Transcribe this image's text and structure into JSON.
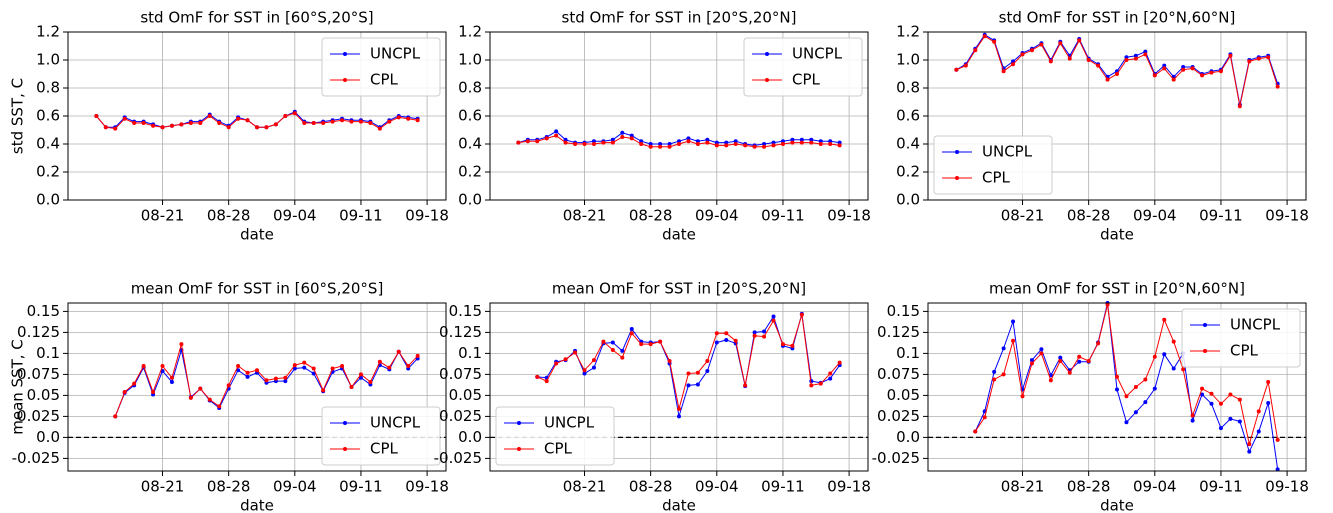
{
  "chart_data": [
    {
      "type": "line",
      "title": "std OmF for SST in [60°S,20°S]",
      "xlabel": "date",
      "ylabel": "std SST, C",
      "x": [
        "08-14",
        "08-15",
        "08-16",
        "08-17",
        "08-18",
        "08-19",
        "08-20",
        "08-21",
        "08-22",
        "08-23",
        "08-24",
        "08-25",
        "08-26",
        "08-27",
        "08-28",
        "08-29",
        "08-30",
        "08-31",
        "09-01",
        "09-02",
        "09-03",
        "09-04",
        "09-05",
        "09-06",
        "09-07",
        "09-08",
        "09-09",
        "09-10",
        "09-11",
        "09-12",
        "09-13",
        "09-14",
        "09-15",
        "09-16",
        "09-17"
      ],
      "series": [
        {
          "name": "UNCPL",
          "color": "#0000ff",
          "values": [
            0.6,
            0.52,
            0.52,
            0.59,
            0.56,
            0.56,
            0.54,
            0.52,
            0.53,
            0.54,
            0.56,
            0.56,
            0.61,
            0.56,
            0.53,
            0.59,
            0.57,
            0.52,
            0.52,
            0.54,
            0.6,
            0.63,
            0.56,
            0.55,
            0.56,
            0.57,
            0.58,
            0.57,
            0.57,
            0.56,
            0.52,
            0.57,
            0.6,
            0.59,
            0.58
          ]
        },
        {
          "name": "CPL",
          "color": "#ff0000",
          "values": [
            0.6,
            0.52,
            0.51,
            0.58,
            0.55,
            0.55,
            0.53,
            0.52,
            0.53,
            0.54,
            0.55,
            0.55,
            0.6,
            0.55,
            0.52,
            0.58,
            0.57,
            0.52,
            0.52,
            0.54,
            0.6,
            0.62,
            0.55,
            0.55,
            0.55,
            0.56,
            0.57,
            0.56,
            0.56,
            0.55,
            0.51,
            0.56,
            0.59,
            0.58,
            0.57
          ]
        }
      ],
      "xlim": [
        "08-11",
        "09-20"
      ],
      "xticks": [
        "08-21",
        "08-28",
        "09-04",
        "09-11",
        "09-18"
      ],
      "ylim": [
        0,
        1.2
      ],
      "yticks": [
        {
          "value": 0,
          "label": "0.0"
        },
        0.2,
        0.4,
        0.6,
        0.8,
        {
          "value": 1,
          "label": "1.0"
        },
        1.2
      ],
      "grid": true,
      "legend": "upper right"
    },
    {
      "type": "line",
      "title": "std OmF for SST in [20°S,20°N]",
      "xlabel": "date",
      "x": [
        "08-14",
        "08-15",
        "08-16",
        "08-17",
        "08-18",
        "08-19",
        "08-20",
        "08-21",
        "08-22",
        "08-23",
        "08-24",
        "08-25",
        "08-26",
        "08-27",
        "08-28",
        "08-29",
        "08-30",
        "08-31",
        "09-01",
        "09-02",
        "09-03",
        "09-04",
        "09-05",
        "09-06",
        "09-07",
        "09-08",
        "09-09",
        "09-10",
        "09-11",
        "09-12",
        "09-13",
        "09-14",
        "09-15",
        "09-16",
        "09-17"
      ],
      "series": [
        {
          "name": "UNCPL",
          "color": "#0000ff",
          "values": [
            0.41,
            0.43,
            0.43,
            0.45,
            0.49,
            0.43,
            0.41,
            0.41,
            0.42,
            0.42,
            0.43,
            0.48,
            0.46,
            0.42,
            0.4,
            0.4,
            0.4,
            0.42,
            0.44,
            0.42,
            0.43,
            0.41,
            0.41,
            0.42,
            0.4,
            0.39,
            0.4,
            0.41,
            0.42,
            0.43,
            0.43,
            0.43,
            0.42,
            0.42,
            0.41
          ]
        },
        {
          "name": "CPL",
          "color": "#ff0000",
          "values": [
            0.41,
            0.42,
            0.42,
            0.44,
            0.46,
            0.41,
            0.4,
            0.4,
            0.4,
            0.41,
            0.41,
            0.45,
            0.44,
            0.4,
            0.38,
            0.38,
            0.38,
            0.4,
            0.42,
            0.4,
            0.41,
            0.39,
            0.39,
            0.4,
            0.39,
            0.38,
            0.38,
            0.39,
            0.4,
            0.41,
            0.41,
            0.41,
            0.4,
            0.4,
            0.39
          ]
        }
      ],
      "xlim": [
        "08-11",
        "09-20"
      ],
      "xticks": [
        "08-21",
        "08-28",
        "09-04",
        "09-11",
        "09-18"
      ],
      "ylim": [
        0,
        1.2
      ],
      "yticks": [
        {
          "value": 0,
          "label": "0.0"
        },
        0.2,
        0.4,
        0.6,
        0.8,
        {
          "value": 1,
          "label": "1.0"
        },
        1.2
      ],
      "grid": true,
      "legend": "upper right"
    },
    {
      "type": "line",
      "title": "std OmF for SST in [20°N,60°N]",
      "xlabel": "date",
      "x": [
        "08-14",
        "08-15",
        "08-16",
        "08-17",
        "08-18",
        "08-19",
        "08-20",
        "08-21",
        "08-22",
        "08-23",
        "08-24",
        "08-25",
        "08-26",
        "08-27",
        "08-28",
        "08-29",
        "08-30",
        "08-31",
        "09-01",
        "09-02",
        "09-03",
        "09-04",
        "09-05",
        "09-06",
        "09-07",
        "09-08",
        "09-09",
        "09-10",
        "09-11",
        "09-12",
        "09-13",
        "09-14",
        "09-15",
        "09-16",
        "09-17"
      ],
      "series": [
        {
          "name": "UNCPL",
          "color": "#0000ff",
          "values": [
            0.93,
            0.97,
            1.08,
            1.18,
            1.14,
            0.94,
            0.99,
            1.05,
            1.08,
            1.12,
            1.0,
            1.13,
            1.03,
            1.15,
            1.01,
            0.97,
            0.88,
            0.92,
            1.02,
            1.03,
            1.06,
            0.9,
            0.96,
            0.88,
            0.95,
            0.95,
            0.9,
            0.92,
            0.93,
            1.04,
            0.68,
            1.0,
            1.02,
            1.03,
            0.83
          ]
        },
        {
          "name": "CPL",
          "color": "#ff0000",
          "values": [
            0.93,
            0.96,
            1.07,
            1.17,
            1.13,
            0.92,
            0.97,
            1.04,
            1.07,
            1.11,
            0.99,
            1.12,
            1.01,
            1.14,
            1.0,
            0.96,
            0.86,
            0.9,
            1.0,
            1.01,
            1.04,
            0.89,
            0.94,
            0.86,
            0.93,
            0.94,
            0.89,
            0.91,
            0.92,
            1.03,
            0.67,
            0.99,
            1.01,
            1.02,
            0.81
          ]
        }
      ],
      "xlim": [
        "08-11",
        "09-20"
      ],
      "xticks": [
        "08-21",
        "08-28",
        "09-04",
        "09-11",
        "09-18"
      ],
      "ylim": [
        0,
        1.2
      ],
      "yticks": [
        {
          "value": 0,
          "label": "0.0"
        },
        0.2,
        0.4,
        0.6,
        0.8,
        {
          "value": 1,
          "label": "1.0"
        },
        1.2
      ],
      "grid": true,
      "legend": "lower left"
    },
    {
      "type": "line",
      "title": "mean OmF for SST in [60°S,20°S]",
      "xlabel": "date",
      "ylabel": "mean SST, C",
      "x": [
        "08-16",
        "08-17",
        "08-18",
        "08-19",
        "08-20",
        "08-21",
        "08-22",
        "08-23",
        "08-24",
        "08-25",
        "08-26",
        "08-27",
        "08-28",
        "08-29",
        "08-30",
        "08-31",
        "09-01",
        "09-02",
        "09-03",
        "09-04",
        "09-05",
        "09-06",
        "09-07",
        "09-08",
        "09-09",
        "09-10",
        "09-11",
        "09-12",
        "09-13",
        "09-14",
        "09-15",
        "09-16",
        "09-17"
      ],
      "series": [
        {
          "name": "UNCPL",
          "color": "#0000ff",
          "values": [
            0.025,
            0.053,
            0.062,
            0.083,
            0.051,
            0.079,
            0.066,
            0.104,
            0.048,
            0.058,
            0.044,
            0.035,
            0.058,
            0.08,
            0.072,
            0.077,
            0.065,
            0.067,
            0.067,
            0.082,
            0.083,
            0.076,
            0.055,
            0.078,
            0.082,
            0.06,
            0.071,
            0.063,
            0.086,
            0.081,
            0.102,
            0.082,
            0.094
          ]
        },
        {
          "name": "CPL",
          "color": "#ff0000",
          "values": [
            0.025,
            0.054,
            0.064,
            0.085,
            0.054,
            0.085,
            0.071,
            0.111,
            0.047,
            0.058,
            0.045,
            0.037,
            0.062,
            0.085,
            0.077,
            0.08,
            0.068,
            0.07,
            0.071,
            0.086,
            0.089,
            0.082,
            0.056,
            0.082,
            0.085,
            0.06,
            0.075,
            0.066,
            0.09,
            0.083,
            0.102,
            0.085,
            0.097
          ]
        }
      ],
      "xlim": [
        "08-11",
        "09-20"
      ],
      "xticks": [
        "08-21",
        "08-28",
        "09-04",
        "09-11",
        "09-18"
      ],
      "ylim": [
        -0.04,
        0.16
      ],
      "yticks": [
        -0.025,
        {
          "value": 0,
          "label": "0.0"
        },
        0.025,
        0.05,
        0.075,
        0.1,
        0.125,
        0.15
      ],
      "hline": 0,
      "grid": true,
      "legend": "lower right"
    },
    {
      "type": "line",
      "title": "mean OmF for SST in [20°S,20°N]",
      "xlabel": "date",
      "x": [
        "08-16",
        "08-17",
        "08-18",
        "08-19",
        "08-20",
        "08-21",
        "08-22",
        "08-23",
        "08-24",
        "08-25",
        "08-26",
        "08-27",
        "08-28",
        "08-29",
        "08-30",
        "08-31",
        "09-01",
        "09-02",
        "09-03",
        "09-04",
        "09-05",
        "09-06",
        "09-07",
        "09-08",
        "09-09",
        "09-10",
        "09-11",
        "09-12",
        "09-13",
        "09-14",
        "09-15",
        "09-16",
        "09-17"
      ],
      "series": [
        {
          "name": "UNCPL",
          "color": "#0000ff",
          "values": [
            0.072,
            0.071,
            0.09,
            0.092,
            0.103,
            0.076,
            0.083,
            0.112,
            0.113,
            0.103,
            0.129,
            0.114,
            0.113,
            0.114,
            0.088,
            0.025,
            0.062,
            0.063,
            0.079,
            0.113,
            0.116,
            0.112,
            0.061,
            0.125,
            0.126,
            0.144,
            0.109,
            0.106,
            0.147,
            0.067,
            0.065,
            0.07,
            0.086
          ]
        },
        {
          "name": "CPL",
          "color": "#ff0000",
          "values": [
            0.072,
            0.067,
            0.088,
            0.093,
            0.101,
            0.08,
            0.092,
            0.114,
            0.104,
            0.095,
            0.124,
            0.111,
            0.111,
            0.114,
            0.091,
            0.034,
            0.076,
            0.077,
            0.091,
            0.124,
            0.124,
            0.115,
            0.062,
            0.121,
            0.12,
            0.139,
            0.111,
            0.109,
            0.146,
            0.062,
            0.064,
            0.076,
            0.089
          ]
        }
      ],
      "xlim": [
        "08-11",
        "09-20"
      ],
      "xticks": [
        "08-21",
        "08-28",
        "09-04",
        "09-11",
        "09-18"
      ],
      "ylim": [
        -0.04,
        0.16
      ],
      "yticks": [
        -0.025,
        {
          "value": 0,
          "label": "0.0"
        },
        0.025,
        0.05,
        0.075,
        0.1,
        0.125,
        0.15
      ],
      "hline": 0,
      "grid": true,
      "legend": "lower left"
    },
    {
      "type": "line",
      "title": "mean OmF for SST in [20°N,60°N]",
      "xlabel": "date",
      "x": [
        "08-16",
        "08-17",
        "08-18",
        "08-19",
        "08-20",
        "08-21",
        "08-22",
        "08-23",
        "08-24",
        "08-25",
        "08-26",
        "08-27",
        "08-28",
        "08-29",
        "08-30",
        "08-31",
        "09-01",
        "09-02",
        "09-03",
        "09-04",
        "09-05",
        "09-06",
        "09-07",
        "09-08",
        "09-09",
        "09-10",
        "09-11",
        "09-12",
        "09-13",
        "09-14",
        "09-15",
        "09-16",
        "09-17"
      ],
      "series": [
        {
          "name": "UNCPL",
          "color": "#0000ff",
          "values": [
            0.007,
            0.031,
            0.078,
            0.106,
            0.138,
            0.057,
            0.092,
            0.105,
            0.074,
            0.095,
            0.08,
            0.09,
            0.09,
            0.113,
            0.16,
            0.057,
            0.018,
            0.03,
            0.042,
            0.058,
            0.099,
            0.082,
            0.1,
            0.02,
            0.051,
            0.04,
            0.011,
            0.022,
            0.019,
            -0.017,
            0.007,
            0.041,
            -0.038
          ]
        },
        {
          "name": "CPL",
          "color": "#ff0000",
          "values": [
            0.007,
            0.024,
            0.069,
            0.075,
            0.115,
            0.049,
            0.088,
            0.1,
            0.068,
            0.091,
            0.077,
            0.096,
            0.091,
            0.112,
            0.158,
            0.072,
            0.049,
            0.06,
            0.069,
            0.096,
            0.14,
            0.114,
            0.081,
            0.026,
            0.058,
            0.052,
            0.04,
            0.051,
            0.045,
            -0.008,
            0.031,
            0.066,
            -0.003
          ]
        }
      ],
      "xlim": [
        "08-11",
        "09-20"
      ],
      "xticks": [
        "08-21",
        "08-28",
        "09-04",
        "09-11",
        "09-18"
      ],
      "ylim": [
        -0.04,
        0.16
      ],
      "yticks": [
        -0.025,
        {
          "value": 0,
          "label": "0.0"
        },
        0.025,
        0.05,
        0.075,
        0.1,
        0.125,
        0.15
      ],
      "hline": 0,
      "grid": true,
      "legend": "upper right"
    }
  ]
}
